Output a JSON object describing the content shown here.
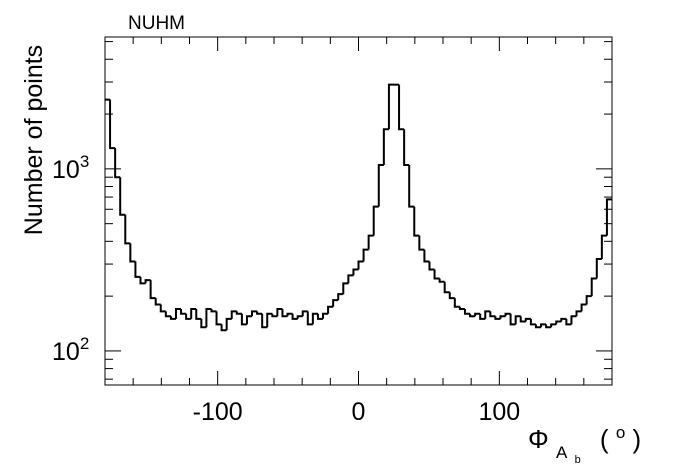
{
  "chart_data": {
    "type": "histogram",
    "title": "NUHM",
    "xlabel_symbol": "Φ",
    "xlabel_sub": "A",
    "xlabel_subsub": "b",
    "xlabel_unit_open": "(",
    "xlabel_unit_sup": "o",
    "xlabel_unit_close": ")",
    "ylabel": "Number of points",
    "xlim": [
      -180,
      180
    ],
    "ylim": [
      65,
      5300
    ],
    "yscale": "log",
    "grid": false,
    "legend": "none",
    "line_color": "#000000",
    "x_ticks": [
      -100,
      0,
      100
    ],
    "x_tick_labels": [
      "-100",
      "0",
      "100"
    ],
    "y_ticks": [
      100,
      1000
    ],
    "y_tick_base": "10",
    "y_tick_exps": [
      "2",
      "3"
    ],
    "bin_width": 3.6,
    "values": [
      2400,
      1300,
      900,
      560,
      390,
      310,
      255,
      235,
      245,
      195,
      180,
      165,
      155,
      150,
      170,
      160,
      150,
      170,
      150,
      135,
      170,
      165,
      140,
      130,
      150,
      165,
      160,
      140,
      155,
      165,
      160,
      135,
      160,
      155,
      170,
      155,
      160,
      150,
      155,
      165,
      140,
      160,
      150,
      160,
      175,
      190,
      205,
      235,
      260,
      280,
      310,
      360,
      430,
      620,
      1050,
      1650,
      2900,
      2900,
      1650,
      1050,
      620,
      430,
      360,
      310,
      280,
      250,
      240,
      210,
      195,
      175,
      170,
      160,
      155,
      160,
      150,
      165,
      155,
      150,
      155,
      160,
      140,
      155,
      145,
      150,
      140,
      135,
      140,
      135,
      140,
      145,
      150,
      140,
      155,
      165,
      180,
      200,
      250,
      320,
      430,
      680
    ]
  }
}
